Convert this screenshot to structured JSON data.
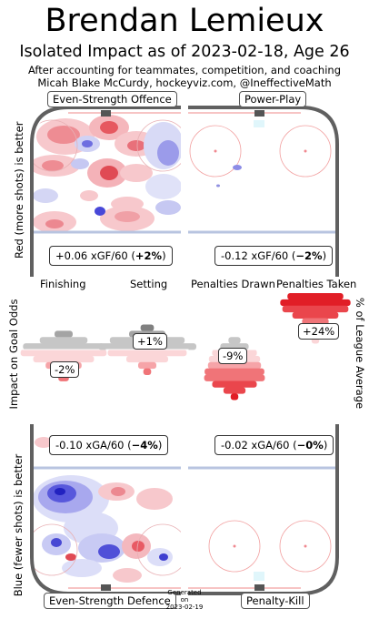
{
  "header": {
    "title": "Brendan Lemieux",
    "subtitle": "Isolated Impact as of 2023-02-18, Age 26",
    "line1": "After accounting for teammates, competition, and coaching",
    "line2": "Micah Blake McCurdy, hockeyviz.com, @IneffectiveMath"
  },
  "side_labels": {
    "top": "Red (more shots) is better",
    "middle": "Impact on Goal Odds",
    "bottom": "Blue (fewer shots) is better",
    "right": "% of League Average"
  },
  "rinks": {
    "es_offence": {
      "label": "Even-Strength Offence",
      "value_prefix": "+0.06 xGF/60 (",
      "value_bold": "+2%",
      "value_suffix": ")"
    },
    "power_play": {
      "label": "Power-Play",
      "value_prefix": "-0.12 xGF/60 (",
      "value_bold": "−2%",
      "value_suffix": ")"
    },
    "es_defence": {
      "label": "Even-Strength Defence",
      "value_prefix": "-0.10 xGA/60 (",
      "value_bold": "−4%",
      "value_suffix": ")"
    },
    "penalty_kill": {
      "label": "Penalty-Kill",
      "value_prefix": "-0.02 xGA/60 (",
      "value_bold": "−0%",
      "value_suffix": ")"
    }
  },
  "footer": {
    "generated": "Generated",
    "on": "on",
    "date": "2023-02-19"
  },
  "colors": {
    "red": "#e8303a",
    "blue": "#3c3cd8",
    "rink_line": "#606060",
    "blue_line": "#b8c4e0",
    "goal_line": "#f2a0a0"
  },
  "chart_data": {
    "type": "bar",
    "title": "Impact on Goal Odds",
    "ylabel": "% of League Average",
    "categories": [
      "Finishing",
      "Setting",
      "Penalties Drawn",
      "Penalties Taken"
    ],
    "values": [
      -2,
      1,
      -9,
      24
    ],
    "value_labels": [
      "-2%",
      "+1%",
      "-9%",
      "+24%"
    ]
  }
}
